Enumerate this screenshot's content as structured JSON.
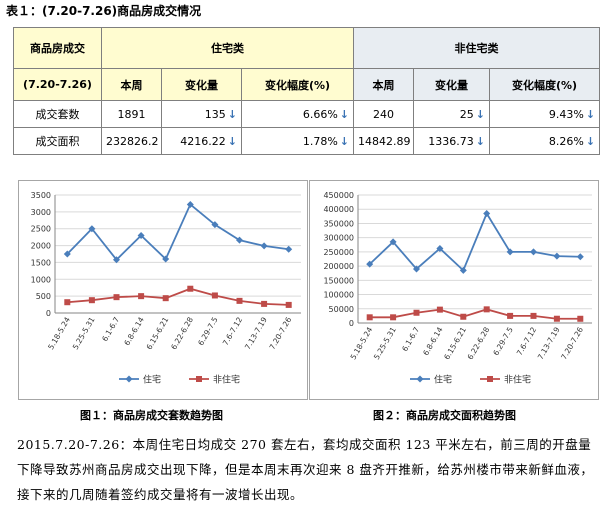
{
  "table_title": "表１：(7.20-7.26)商品房成交情况",
  "table": {
    "header": {
      "corner": "商品房成交",
      "group_residential": "住宅类",
      "group_nonresidential": "非住宅类",
      "period": "(7.20-7.26)",
      "col_week": "本周",
      "col_change": "变化量",
      "col_rate": "变化幅度(%)"
    },
    "rows": [
      {
        "label": "成交套数",
        "res_week": "1891",
        "res_change": "135",
        "res_rate": "6.66%",
        "non_week": "240",
        "non_change": "25",
        "non_rate": "9.43%"
      },
      {
        "label": "成交面积",
        "res_week": "232826.2",
        "res_change": "4216.22",
        "res_rate": "1.78%",
        "non_week": "14842.89",
        "non_change": "1336.73",
        "non_rate": "8.26%"
      }
    ],
    "down_arrow": "↓"
  },
  "chart_data": [
    {
      "type": "line",
      "categories": [
        "5.18-5.24",
        "5.25-5.31",
        "6.1-6.7",
        "6.8-6.14",
        "6.15-6.21",
        "6.22-6.28",
        "6.29-7.5",
        "7.6-7.12",
        "7.13-7.19",
        "7.20-7.26"
      ],
      "series": [
        {
          "name": "住宅",
          "values": [
            1750,
            2500,
            1580,
            2300,
            1600,
            3220,
            2620,
            2160,
            1990,
            1890
          ],
          "color": "#4a7ebb",
          "marker": "diamond"
        },
        {
          "name": "非住宅",
          "values": [
            320,
            380,
            470,
            500,
            440,
            720,
            520,
            360,
            270,
            240
          ],
          "color": "#be4b48",
          "marker": "square"
        }
      ],
      "ylim": [
        0,
        3500
      ],
      "yticks": [
        "0",
        "500",
        "1000",
        "1500",
        "2000",
        "2500",
        "3000",
        "3500"
      ],
      "title": "",
      "xlabel": "",
      "ylabel": "",
      "legend": "bottom",
      "grid": true
    },
    {
      "type": "line",
      "categories": [
        "5.18-5.24",
        "5.25-5.31",
        "6.1-6.7",
        "6.8-6.14",
        "6.15-6.21",
        "6.22-6.28",
        "6.29-7.5",
        "7.6-7.12",
        "7.13-7.19",
        "7.20-7.26"
      ],
      "series": [
        {
          "name": "住宅",
          "values": [
            207000,
            285000,
            190000,
            262000,
            185000,
            385000,
            250000,
            250000,
            235000,
            232826
          ],
          "color": "#4a7ebb",
          "marker": "diamond"
        },
        {
          "name": "非住宅",
          "values": [
            20000,
            20000,
            36000,
            47000,
            22000,
            48000,
            25000,
            25000,
            15000,
            14843
          ],
          "color": "#be4b48",
          "marker": "square"
        }
      ],
      "ylim": [
        0,
        450000
      ],
      "yticks": [
        "0",
        "50000",
        "100000",
        "150000",
        "200000",
        "250000",
        "300000",
        "350000",
        "400000",
        "450000"
      ],
      "title": "",
      "xlabel": "",
      "ylabel": "",
      "legend": "bottom",
      "grid": true
    }
  ],
  "captions": {
    "fig1": "图１：商品房成交套数趋势图",
    "fig2": "图２：商品房成交面积趋势图"
  },
  "paragraph": "2015.7.20-7.26：本周住宅日均成交 270 套左右，套均成交面积 123 平米左右，前三周的开盘量下降导致苏州商品房成交出现下降，但是本周末再次迎来 8 盘齐开推新，给苏州楼市带来新鲜血液，接下来的几周随着签约成交量将有一波增长出现。"
}
